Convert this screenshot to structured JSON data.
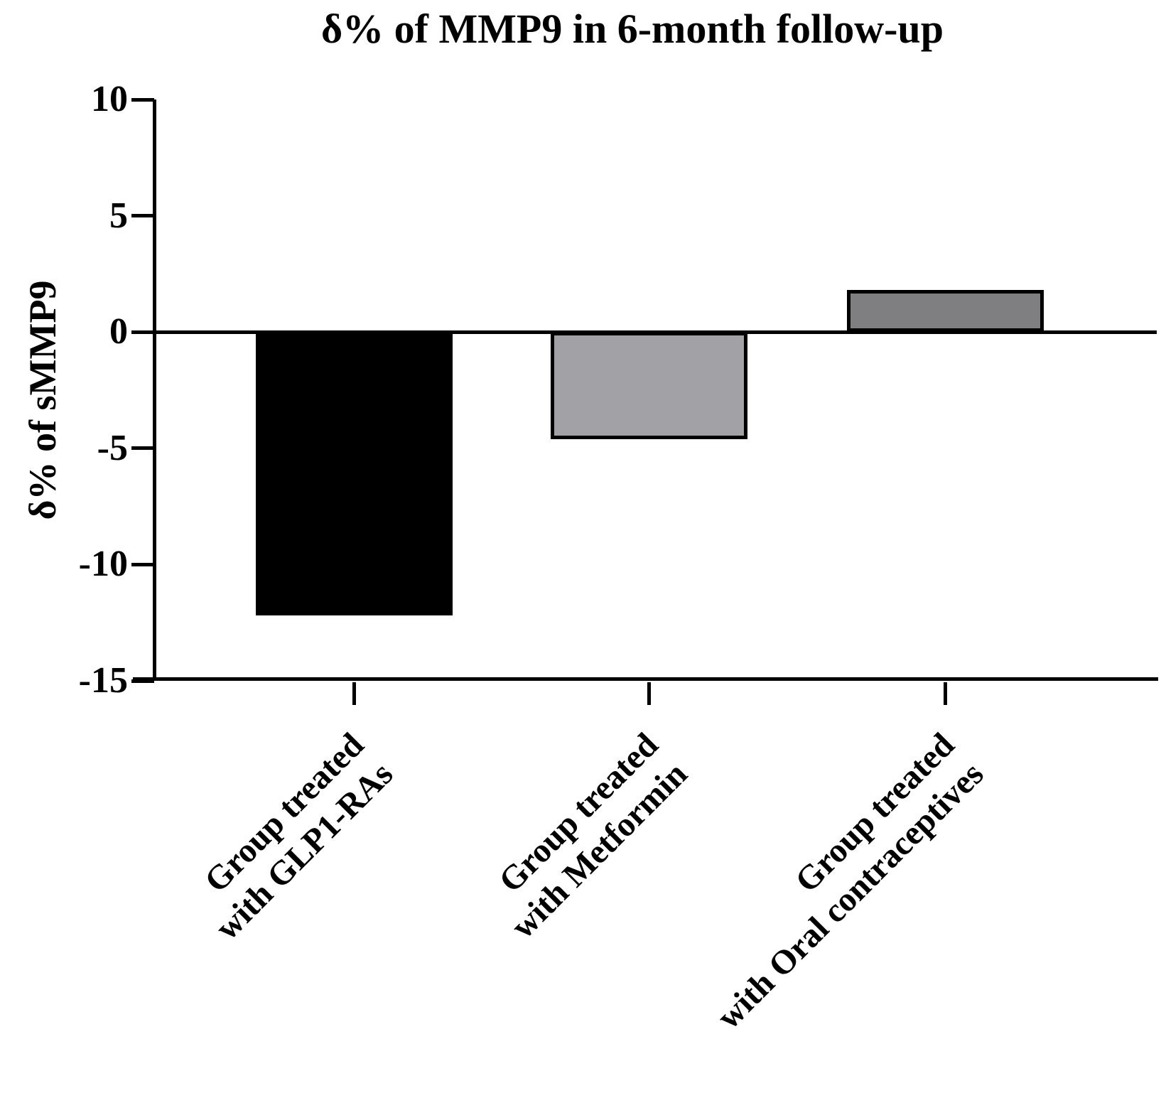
{
  "figure": {
    "background": "#ffffff",
    "text_color": "#000000"
  },
  "chart_data": {
    "type": "bar",
    "title": "δ% of MMP9 in 6-month follow-up",
    "xlabel": "",
    "ylabel": "δ% of sMMP9",
    "ylim": [
      -15,
      10
    ],
    "yticks": [
      10,
      5,
      0,
      -5,
      -10,
      -15
    ],
    "grid": false,
    "legend_position": "none",
    "baseline_value": 0,
    "categories": [
      "Group treated with GLP1-RAs",
      "Group treated with Metformin",
      "Group treated with Oral contraceptives"
    ],
    "category_lines": [
      [
        "Group treated",
        "with GLP1-RAs"
      ],
      [
        "Group treated",
        "with Metformin"
      ],
      [
        "Group treated",
        "with Oral contraceptives"
      ]
    ],
    "values": [
      -12.2,
      -4.6,
      1.8
    ],
    "bar_colors": [
      "#000000",
      "#a2a1a5",
      "#7f7e80"
    ],
    "bar_border_color": "#000000",
    "axis_color": "#000000"
  }
}
